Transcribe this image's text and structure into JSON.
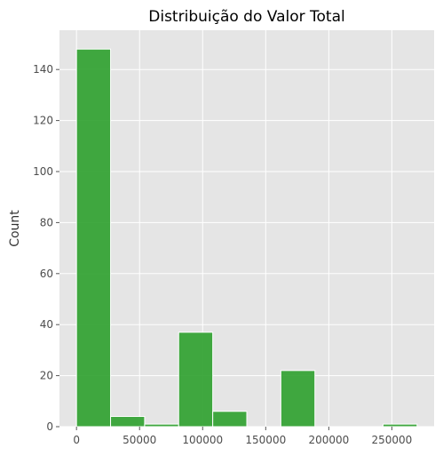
{
  "chart_data": {
    "type": "bar",
    "title": "Distribuição do Valor Total",
    "xlabel": "",
    "ylabel": "Count",
    "x_ticks": [
      0,
      50000,
      100000,
      150000,
      200000,
      250000
    ],
    "y_ticks": [
      0,
      20,
      40,
      60,
      80,
      100,
      120,
      140
    ],
    "xlim": [
      -13500,
      283500
    ],
    "ylim": [
      0,
      155.4
    ],
    "bins": [
      {
        "start": 0,
        "end": 27000,
        "count": 148
      },
      {
        "start": 27000,
        "end": 54000,
        "count": 4
      },
      {
        "start": 54000,
        "end": 81000,
        "count": 1
      },
      {
        "start": 81000,
        "end": 108000,
        "count": 37
      },
      {
        "start": 108000,
        "end": 135000,
        "count": 6
      },
      {
        "start": 135000,
        "end": 162000,
        "count": 0
      },
      {
        "start": 162000,
        "end": 189000,
        "count": 22
      },
      {
        "start": 189000,
        "end": 216000,
        "count": 0
      },
      {
        "start": 216000,
        "end": 243000,
        "count": 0
      },
      {
        "start": 243000,
        "end": 270000,
        "count": 1
      }
    ],
    "grid": true,
    "colors": {
      "bar_fill": "#2ca02c",
      "bar_edge": "#ffffff",
      "plot_background": "#e5e5e5",
      "grid": "#ffffff"
    }
  }
}
